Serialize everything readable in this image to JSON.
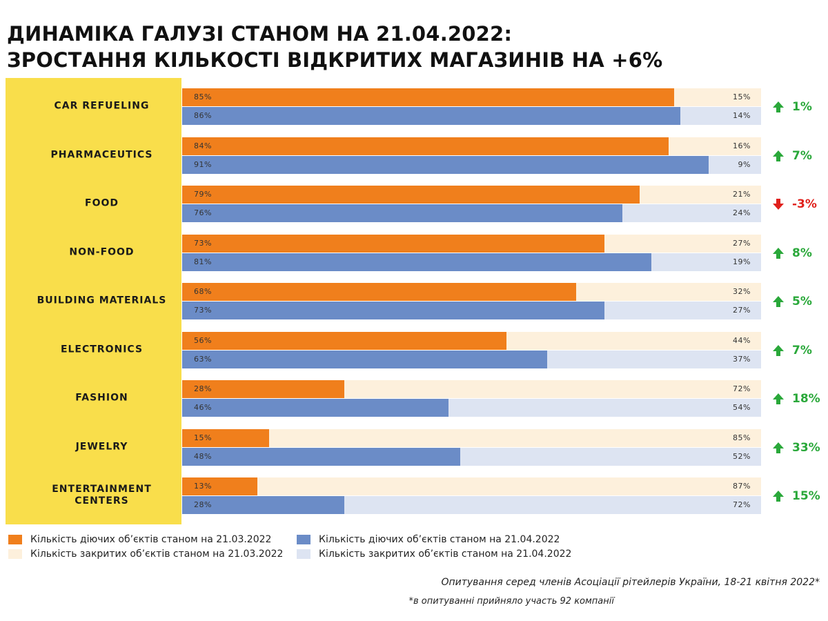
{
  "chart_data": {
    "type": "bar",
    "orientation": "horizontal",
    "title": [
      "ДИНАМІКА ГАЛУЗІ СТАНОМ НА 21.04.2022:",
      "ЗРОСТАННЯ КІЛЬКОСТІ ВІДКРИТИХ МАГАЗИНІВ НА +6%"
    ],
    "categories": [
      "CAR REFUELING",
      "PHARMACEUTICS",
      "FOOD",
      "NON-FOOD",
      "BUILDING MATERIALS",
      "ELECTRONICS",
      "FASHION",
      "JEWELRY",
      "ENTERTAINMENT CENTERS"
    ],
    "xlim": [
      0,
      100
    ],
    "series": [
      {
        "name": "Кількість діючих об’єктів станом на 21.03.2022",
        "color": "#f07f1c",
        "values": [
          85,
          84,
          79,
          73,
          68,
          56,
          28,
          15,
          13
        ],
        "value_labels": [
          "85%",
          "84%",
          "79%",
          "73%",
          "68%",
          "56%",
          "28%",
          "15%",
          "13%"
        ]
      },
      {
        "name": "Кількість закритих об’єктів станом на 21.03.2022",
        "color": "#fdf0dc",
        "values": [
          15,
          16,
          21,
          27,
          32,
          44,
          72,
          85,
          87
        ],
        "value_labels": [
          "15%",
          "16%",
          "21%",
          "27%",
          "32%",
          "44%",
          "72%",
          "85%",
          "87%"
        ]
      },
      {
        "name": "Кількість діючих об’єктів станом на 21.04.2022",
        "color": "#6b8cc7",
        "values": [
          86,
          91,
          76,
          81,
          73,
          63,
          46,
          48,
          28
        ],
        "value_labels": [
          "86%",
          "91%",
          "76%",
          "81%",
          "73%",
          "63%",
          "46%",
          "48%",
          "28%"
        ]
      },
      {
        "name": "Кількість закритих об’єктів станом на 21.04.2022",
        "color": "#dde4f2",
        "values": [
          14,
          9,
          24,
          19,
          27,
          37,
          54,
          52,
          72
        ],
        "value_labels": [
          "14%",
          "9%",
          "24%",
          "19%",
          "27%",
          "37%",
          "54%",
          "52%",
          "72%"
        ]
      }
    ],
    "change": {
      "values": [
        1,
        7,
        -3,
        8,
        5,
        7,
        18,
        33,
        15
      ],
      "value_labels": [
        "1%",
        "7%",
        "-3%",
        "8%",
        "5%",
        "7%",
        "18%",
        "33%",
        "15%"
      ]
    },
    "source": "Опитування серед членів Асоціації рітейлерів України, 18-21 квітня 2022*",
    "footnote": "*в опитуванні прийняло участь 92 компанії"
  }
}
